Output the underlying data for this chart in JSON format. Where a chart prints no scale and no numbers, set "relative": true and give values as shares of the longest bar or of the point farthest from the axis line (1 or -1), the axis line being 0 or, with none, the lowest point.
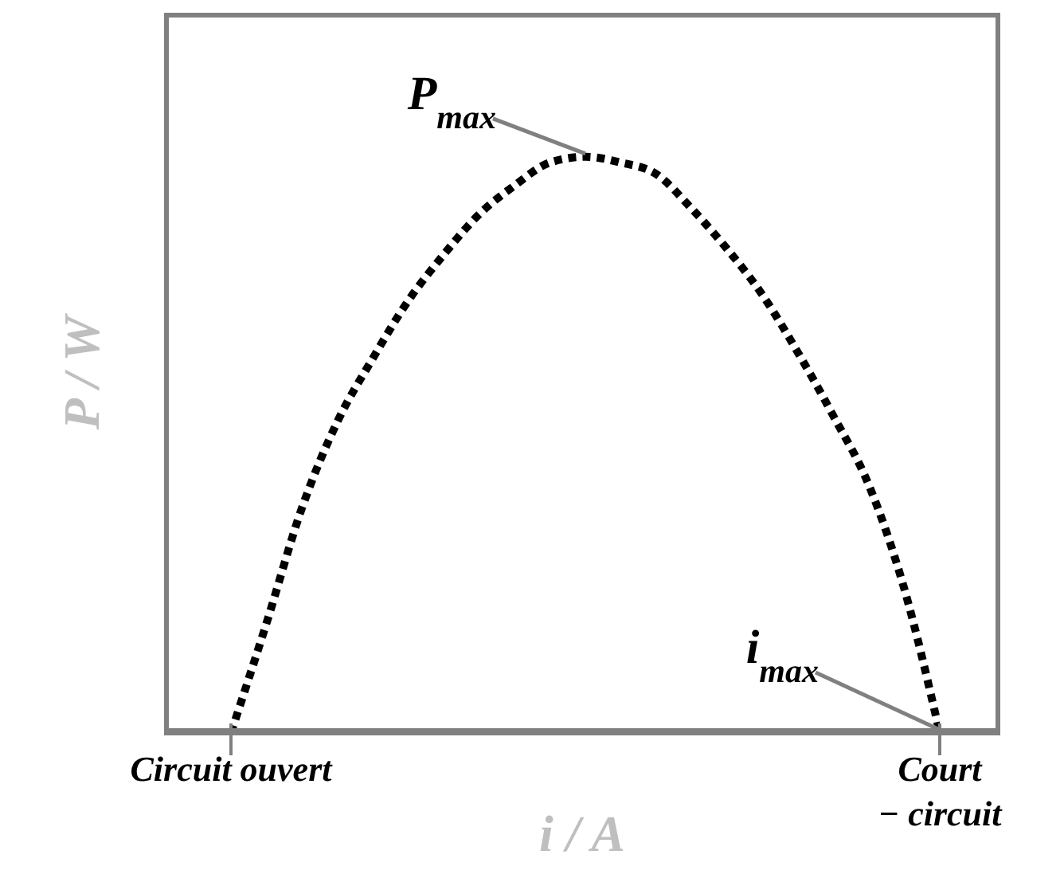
{
  "chart_data": {
    "type": "line",
    "relative": true,
    "xlabel": "i / A",
    "ylabel": "P / W",
    "categories": [
      "Circuit ouvert",
      null,
      null,
      null,
      null,
      null,
      null,
      null,
      null,
      null,
      null,
      null,
      null,
      null,
      null,
      null,
      null,
      null,
      null,
      null,
      "Court\n− circuit"
    ],
    "series": [
      {
        "color": "#000000",
        "values": [
          0,
          0.19,
          0.39,
          0.54,
          0.65,
          0.75,
          0.83,
          0.9,
          0.95,
          0.99,
          1,
          0.99,
          0.97,
          0.91,
          0.84,
          0.76,
          0.66,
          0.55,
          0.43,
          0.25,
          0
        ]
      }
    ],
    "line_style": "dotted",
    "marker": "none",
    "grid": false,
    "legend": false,
    "annotations": [
      "P$_{max}$",
      {
        "text": "i$_{max}$",
        "x": "Court\n− circuit",
        "y": 0
      }
    ]
  }
}
